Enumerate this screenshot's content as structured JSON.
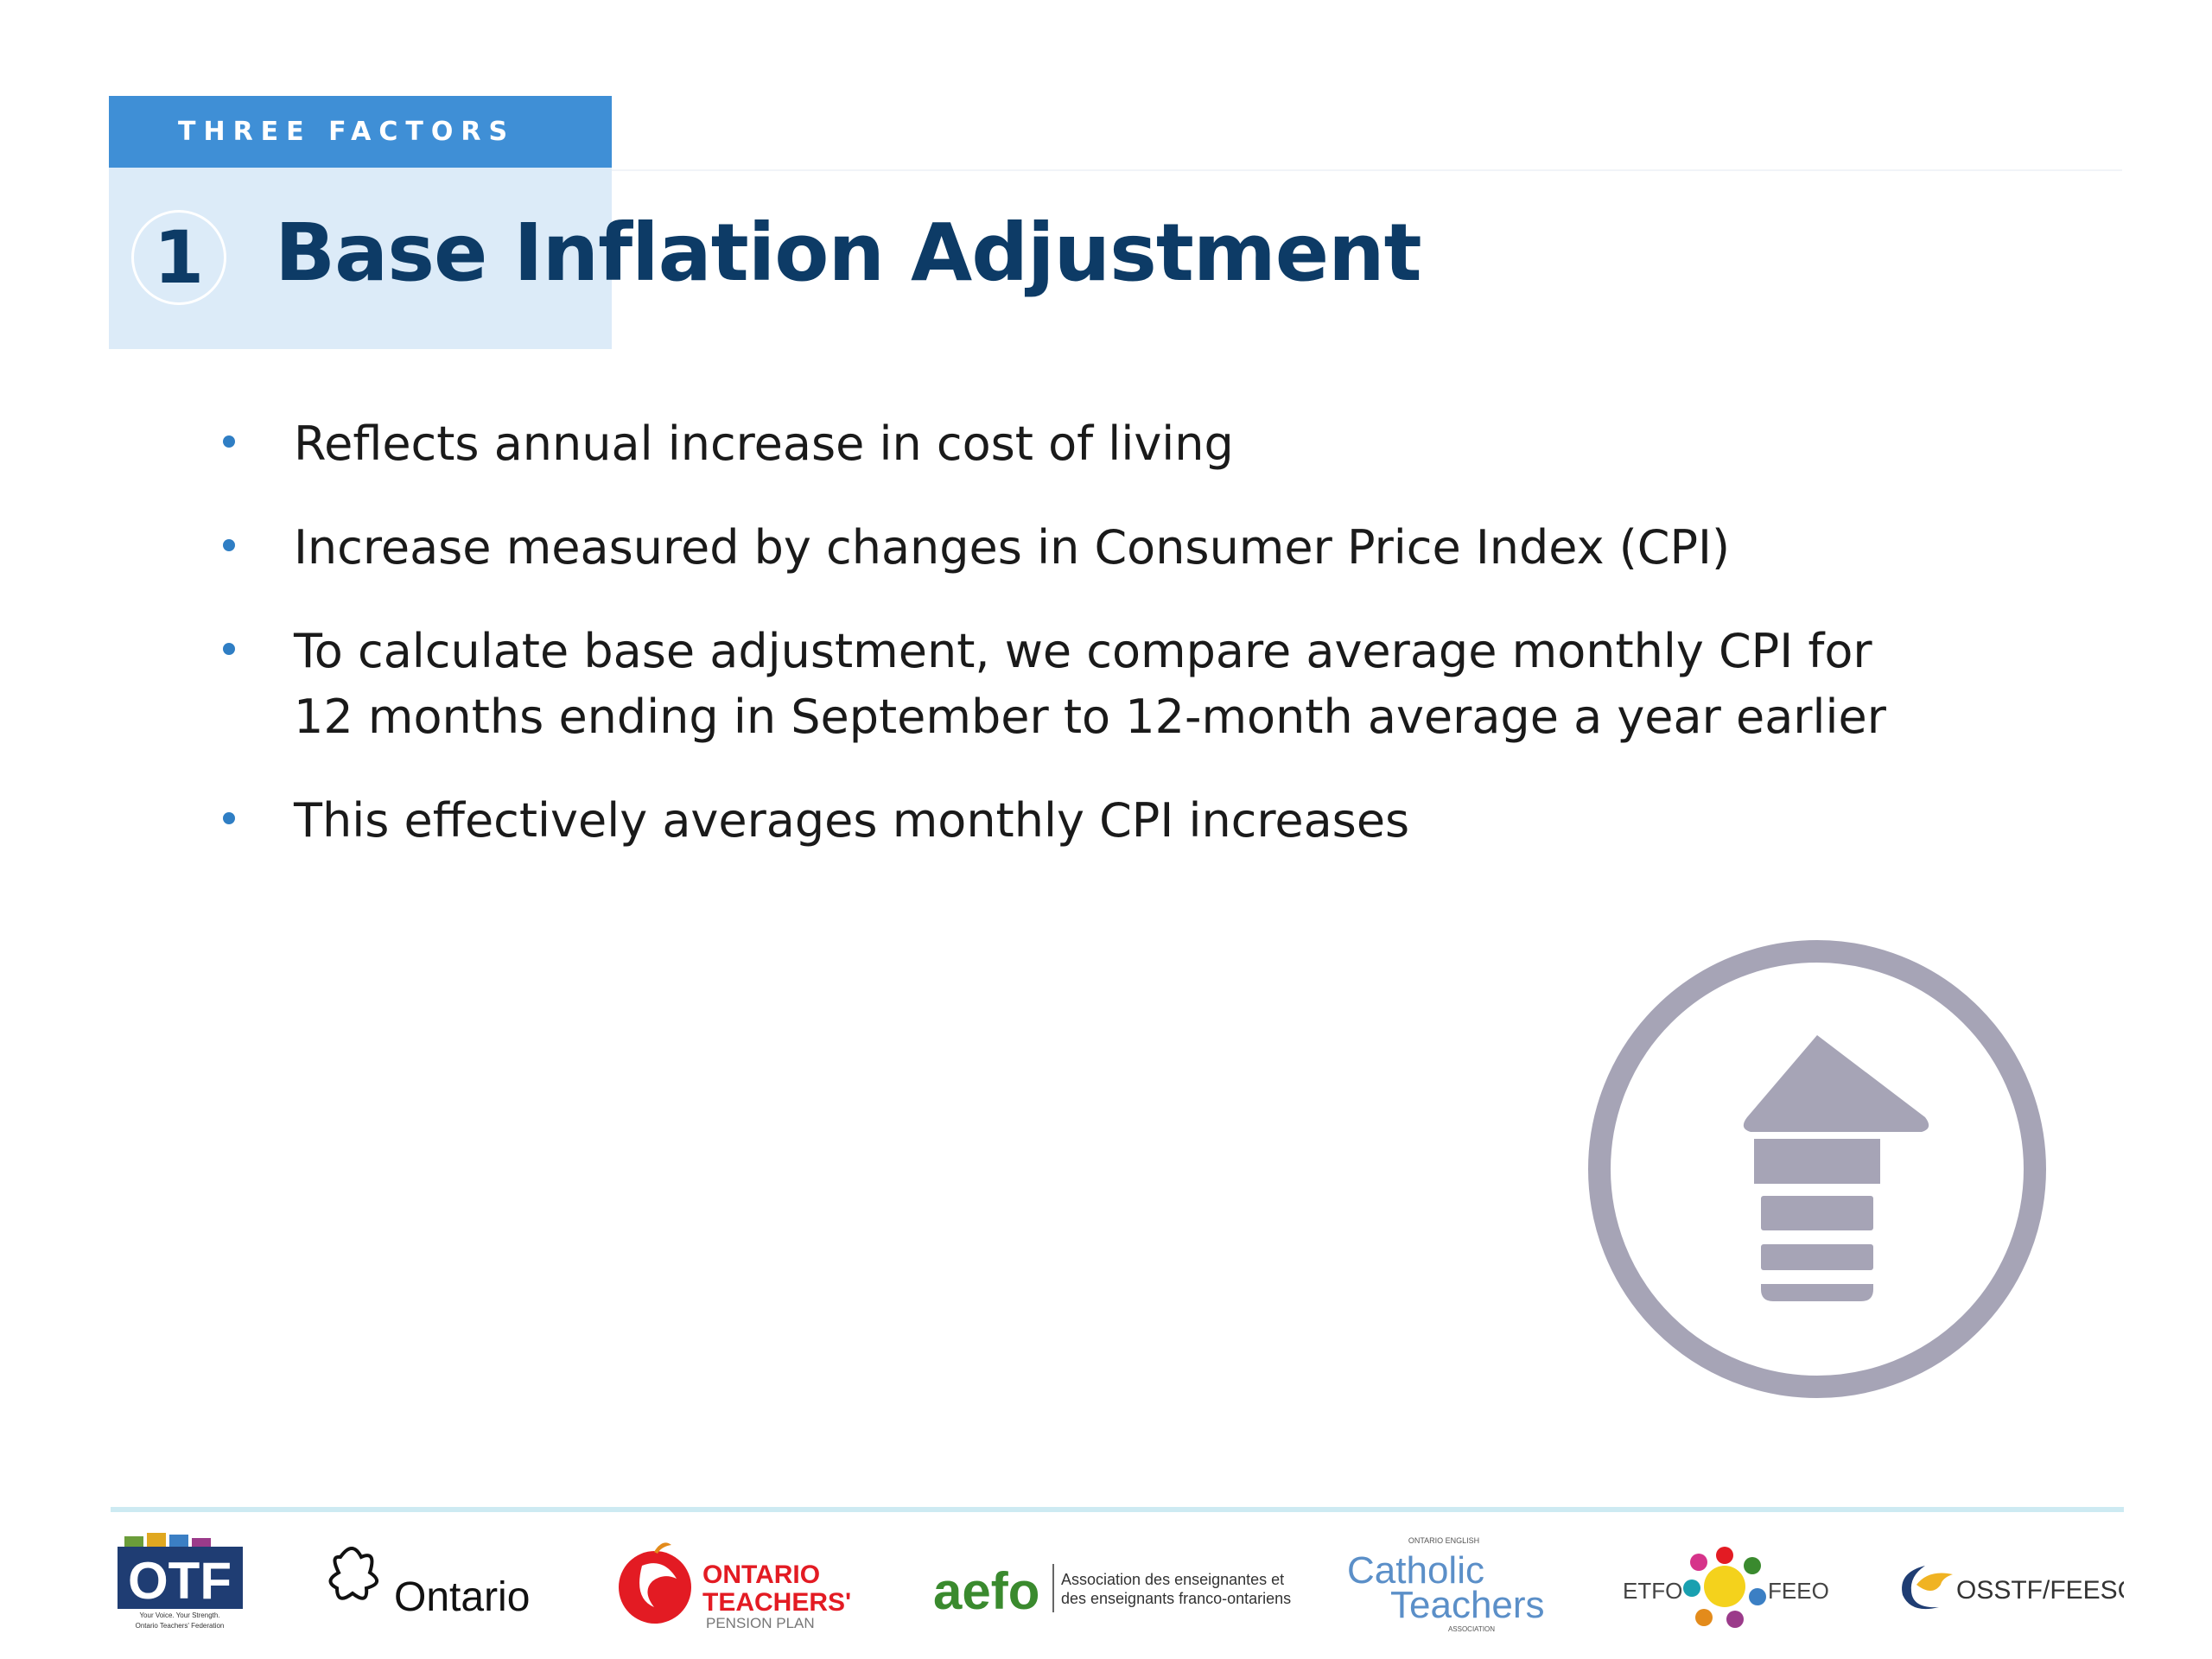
{
  "header": {
    "section_tag": "THREE FACTORS",
    "number": "1",
    "title": "Base Inflation Adjustment"
  },
  "bullets": [
    {
      "lines": [
        "Reflects annual increase in cost of living"
      ]
    },
    {
      "lines": [
        "Increase measured by changes in Consumer Price Index (CPI)"
      ]
    },
    {
      "lines": [
        "To calculate base adjustment, we compare average monthly CPI for",
        "12 months ending in September to 12-month average a year earlier"
      ]
    },
    {
      "lines": [
        "This effectively averages monthly CPI increases"
      ]
    }
  ],
  "icon": "up-arrow-circle-icon",
  "colors": {
    "tag_bg": "#3f8fd6",
    "title_band": "#dcebf8",
    "title_text": "#0d3b66",
    "bullet_dot": "#2f7ec4",
    "icon_gray": "#a6a4b6",
    "footer_rule": "#cdeaf2"
  },
  "footer": {
    "logos": {
      "otf": {
        "main": "OTF",
        "tagline": "Your Voice. Your Strength.",
        "subtitle": "Ontario Teachers' Federation"
      },
      "ontario": {
        "text": "Ontario"
      },
      "ottp": {
        "line1": "ONTARIO",
        "line2": "TEACHERS'",
        "line3": "PENSION PLAN"
      },
      "aefo": {
        "mark": "aefo",
        "line1": "Association des enseignantes et",
        "line2": "des enseignants franco-ontariens"
      },
      "oecta": {
        "top": "ONTARIO ENGLISH",
        "line1": "Catholic",
        "line2": "Teachers",
        "bottom": "ASSOCIATION"
      },
      "etfo": {
        "left": "ETFO",
        "right": "FEEO"
      },
      "osstf": {
        "text": "OSSTF/FEESO"
      }
    }
  }
}
